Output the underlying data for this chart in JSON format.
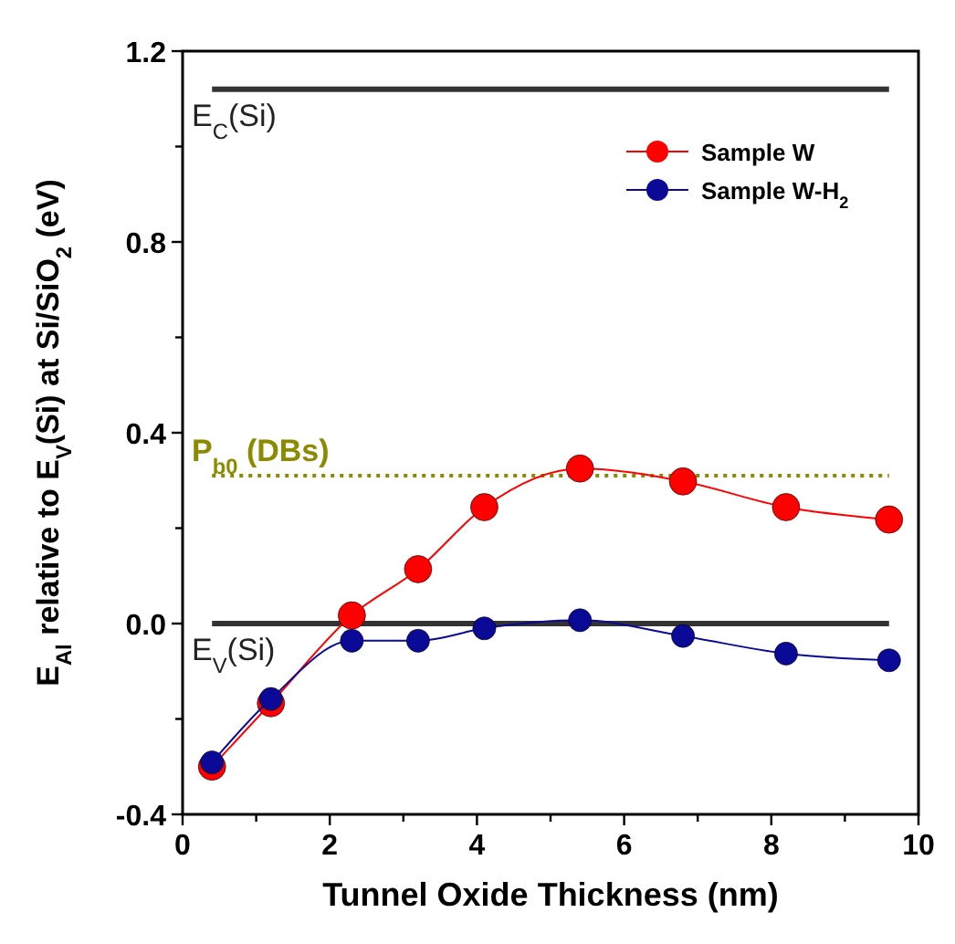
{
  "chart_data": {
    "type": "line",
    "xlabel": "Tunnel Oxide Thickness (nm)",
    "ylabel": "E$_{Al}$ relative to E$_{V}$(Si) at Si/SiO$_{2}$ (eV)",
    "x": [
      0.4,
      1.2,
      2.3,
      3.2,
      4.1,
      5.4,
      6.8,
      8.2,
      9.6
    ],
    "series": [
      {
        "name": "Sample W",
        "color": "#ff0000",
        "values": [
          -0.3,
          -0.167,
          0.017,
          0.114,
          0.244,
          0.325,
          0.298,
          0.244,
          0.218
        ]
      },
      {
        "name": "Sample W-H$_{2}$",
        "color": "#0a0a96",
        "values": [
          -0.291,
          -0.158,
          -0.036,
          -0.036,
          -0.01,
          0.007,
          -0.026,
          -0.063,
          -0.077
        ]
      }
    ],
    "xlim": [
      0,
      10
    ],
    "xticks": [
      0,
      {
        "value": 1,
        "label": null
      },
      2,
      {
        "value": 3,
        "label": null
      },
      4,
      {
        "value": 5,
        "label": null
      },
      6,
      {
        "value": 7,
        "label": null
      },
      8,
      {
        "value": 9,
        "label": null
      },
      10
    ],
    "ylim": [
      -0.4,
      1.2
    ],
    "yticks": [
      {
        "value": -0.4,
        "label": "-0.4"
      },
      {
        "value": -0.2,
        "label": null
      },
      {
        "value": 0,
        "label": "0.0"
      },
      {
        "value": 0.2,
        "label": null
      },
      {
        "value": 0.4,
        "label": "0.4"
      },
      {
        "value": 0.6,
        "label": null
      },
      {
        "value": 0.8,
        "label": "0.8"
      },
      {
        "value": 1.0,
        "label": null
      },
      {
        "value": 1.2,
        "label": "1.2"
      }
    ],
    "ref_lines": [
      {
        "axis": "y",
        "value": 1.12,
        "label": "E$_{C}$(Si)",
        "color": "#333333",
        "line_style": "solid"
      },
      {
        "axis": "y",
        "value": 0,
        "label": "E$_{V}$(Si)",
        "color": "#333333",
        "line_style": "solid"
      },
      {
        "axis": "y",
        "value": 0.31,
        "label": "P$_{b0}$ (DBs)",
        "color": "#8b8b00",
        "line_style": "dotted"
      }
    ],
    "marker": "circle",
    "line_style": "solid",
    "grid": false,
    "legend": "top right"
  }
}
